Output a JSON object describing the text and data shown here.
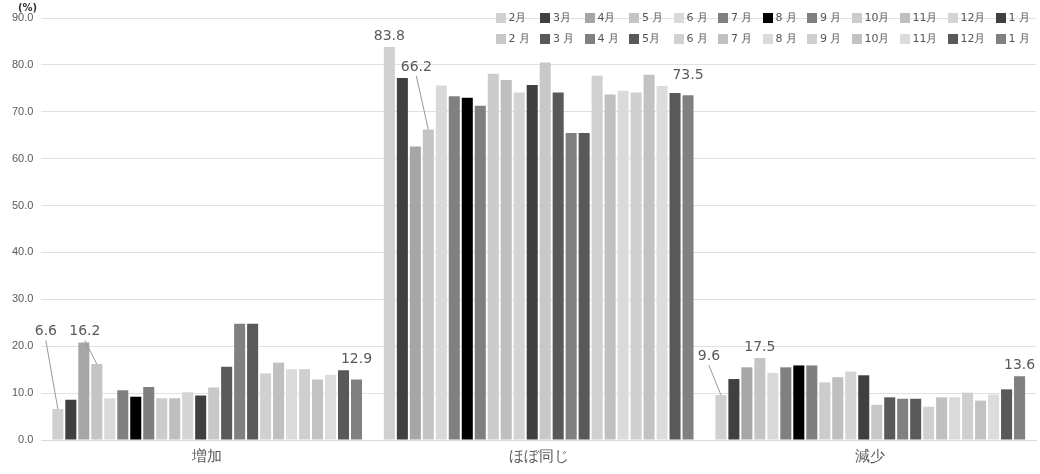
{
  "chart_data": {
    "type": "bar",
    "ylabel": "(%)",
    "categories": [
      "増加",
      "ほぼ同じ",
      "減少"
    ],
    "ylim": [
      0,
      90
    ],
    "yticks": [
      {
        "value": 0,
        "label": "0.0"
      },
      {
        "value": 10,
        "label": "10.0"
      },
      {
        "value": 20,
        "label": "20.0"
      },
      {
        "value": 30,
        "label": "30.0"
      },
      {
        "value": 40,
        "label": "40.0"
      },
      {
        "value": 50,
        "label": "50.0"
      },
      {
        "value": 60,
        "label": "60.0"
      },
      {
        "value": 70,
        "label": "70.0"
      },
      {
        "value": 80,
        "label": "80.0"
      },
      {
        "value": 90,
        "label": "90.0"
      }
    ],
    "grid": "y",
    "legend": "top right",
    "series": [
      {
        "name": "2月",
        "color": "#d0d0d0",
        "values": [
          6.6,
          83.8,
          9.6
        ],
        "value_labels": [
          "6.6",
          "83.8",
          "9.6"
        ]
      },
      {
        "name": "3月",
        "color": "#404040",
        "values": [
          8.6,
          77.2,
          13.0
        ]
      },
      {
        "name": "4月",
        "color": "#a6a6a6",
        "values": [
          20.8,
          62.6,
          15.5
        ]
      },
      {
        "name": "5 月",
        "color": "#c4c4c4",
        "values": [
          16.2,
          66.2,
          17.5
        ],
        "value_labels": [
          "16.2",
          "66.2",
          "17.5"
        ]
      },
      {
        "name": "6 月",
        "color": "#d9d9d9",
        "values": [
          8.9,
          75.6,
          14.3
        ]
      },
      {
        "name": "7 月",
        "color": "#808080",
        "values": [
          10.6,
          73.3,
          15.5
        ]
      },
      {
        "name": "8 月",
        "color": "#000000",
        "values": [
          9.2,
          73.0,
          15.9
        ]
      },
      {
        "name": "9 月",
        "color": "#7f7f7f",
        "values": [
          11.3,
          71.3,
          15.9
        ]
      },
      {
        "name": "10月",
        "color": "#cccccc",
        "values": [
          8.9,
          78.1,
          12.3
        ]
      },
      {
        "name": "11月",
        "color": "#bfbfbf",
        "values": [
          8.9,
          76.8,
          13.4
        ]
      },
      {
        "name": "12月",
        "color": "#d4d4d4",
        "values": [
          10.2,
          74.1,
          14.6
        ]
      },
      {
        "name": "1 月",
        "color": "#404040",
        "values": [
          9.5,
          75.7,
          13.8
        ]
      },
      {
        "name": "2 月",
        "color": "#c8c8c8",
        "values": [
          11.2,
          80.5,
          7.5
        ]
      },
      {
        "name": "3 月",
        "color": "#595959",
        "values": [
          15.6,
          74.1,
          9.1
        ]
      },
      {
        "name": "4 月",
        "color": "#808080",
        "values": [
          24.8,
          65.5,
          8.8
        ]
      },
      {
        "name": "5月",
        "color": "#595959",
        "values": [
          24.8,
          65.5,
          8.8
        ]
      },
      {
        "name": "6 月",
        "color": "#d0d0d0",
        "values": [
          14.2,
          77.7,
          7.1
        ]
      },
      {
        "name": "7 月",
        "color": "#c0c0c0",
        "values": [
          16.5,
          73.7,
          9.1
        ]
      },
      {
        "name": "8 月",
        "color": "#dadada",
        "values": [
          15.1,
          74.5,
          9.1
        ]
      },
      {
        "name": "9 月",
        "color": "#cfcfcf",
        "values": [
          15.1,
          74.1,
          10.1
        ]
      },
      {
        "name": "10月",
        "color": "#c2c2c2",
        "values": [
          12.9,
          77.9,
          8.4
        ]
      },
      {
        "name": "11月",
        "color": "#dcdcdc",
        "values": [
          13.9,
          75.5,
          9.7
        ]
      },
      {
        "name": "12月",
        "color": "#595959",
        "values": [
          14.9,
          74.0,
          10.8
        ]
      },
      {
        "name": "1 月",
        "color": "#808080",
        "values": [
          12.9,
          73.5,
          13.6
        ],
        "value_labels": [
          "12.9",
          "73.5",
          "13.6"
        ]
      }
    ]
  }
}
